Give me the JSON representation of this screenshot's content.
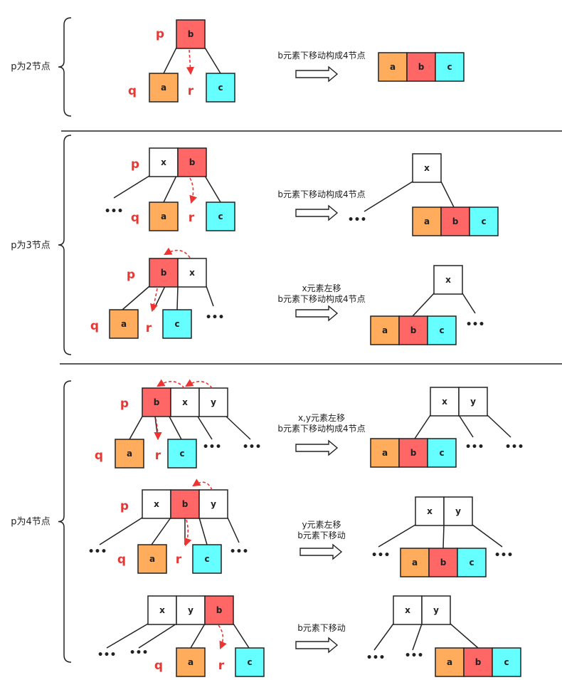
{
  "sections": [
    {
      "label": "p为2节点"
    },
    {
      "label": "p为3节点"
    },
    {
      "label": "p为4节点"
    }
  ],
  "captions": {
    "c1": [
      "b元素下移动构成4节点"
    ],
    "c2": [
      "b元素下移动构成4节点"
    ],
    "c3": [
      "x元素左移",
      "b元素下移动构成4节点"
    ],
    "c4": [
      "x,y元素左移",
      "b元素下移动构成4节点"
    ],
    "c5": [
      "y元素左移",
      "b元素下移动"
    ],
    "c6": [
      "b元素下移动"
    ]
  },
  "labels": {
    "p": "p",
    "q": "q",
    "r": "r",
    "ellipsis": "•••"
  },
  "keys": {
    "a": "a",
    "b": "b",
    "c": "c",
    "x": "x",
    "y": "y"
  },
  "colors": {
    "a": "#ffad5c",
    "b": "#ff6666",
    "c": "#66ffff",
    "plain": "#ffffff",
    "accent": "#e53935"
  }
}
